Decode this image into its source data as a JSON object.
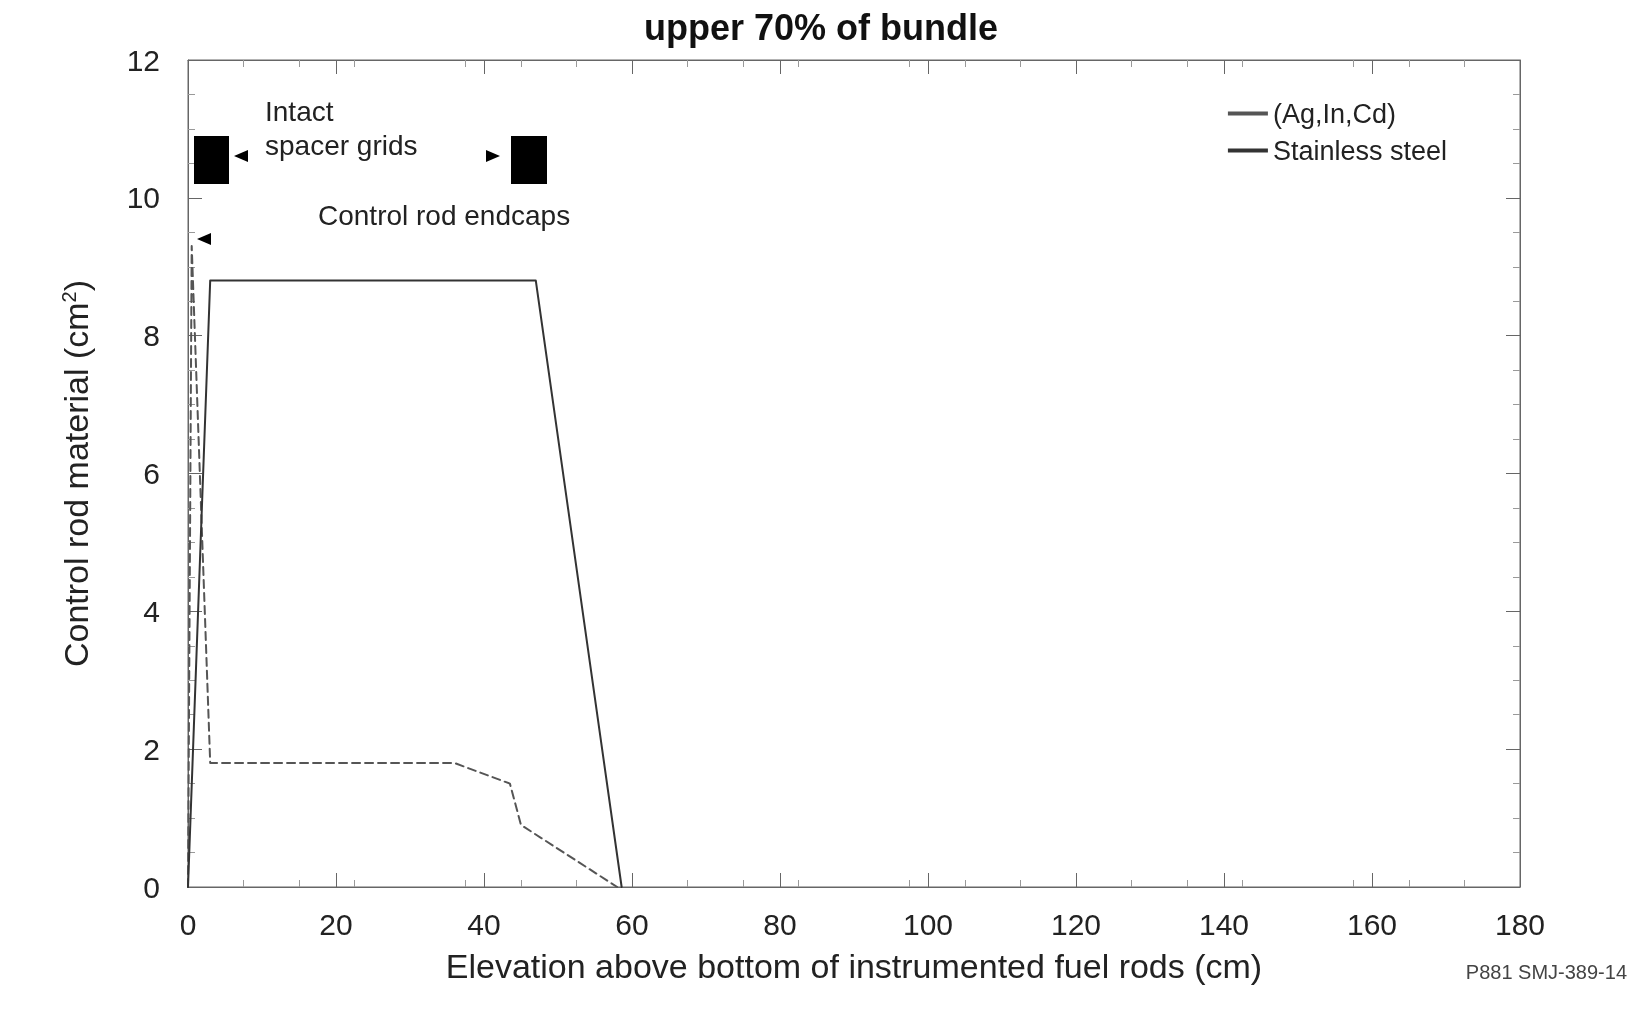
{
  "chart_data": {
    "type": "line",
    "title": "upper 70% of bundle",
    "xlabel": "Elevation above bottom of instrumented fuel rods (cm)",
    "ylabel": "Control rod material (cm$^{2}$)",
    "series": [
      {
        "name": "(Ag,In,Cd)",
        "color": "#555555",
        "line_style": "dashed",
        "x": [
          0,
          0.5,
          3,
          36,
          43.5,
          45,
          58
        ],
        "values": [
          0,
          9.3,
          1.8,
          1.8,
          1.5,
          0.9,
          0
        ]
      },
      {
        "name": "Stainless steel",
        "color": "#333333",
        "line_style": "solid",
        "x": [
          0,
          3,
          47,
          58.6
        ],
        "values": [
          0,
          8.8,
          8.8,
          0
        ]
      }
    ],
    "xlim": [
      0,
      180
    ],
    "xticks": [
      0,
      20,
      40,
      60,
      80,
      100,
      120,
      140,
      160,
      180
    ],
    "ylim": [
      0,
      12
    ],
    "yticks": [
      0,
      2,
      4,
      6,
      8,
      10,
      12
    ],
    "grid": false,
    "legend": "top right",
    "marker": "none",
    "annotations": [
      "Intact\nspacer grids",
      "Control rod endcaps",
      "P881 SMJ-389-14"
    ]
  }
}
